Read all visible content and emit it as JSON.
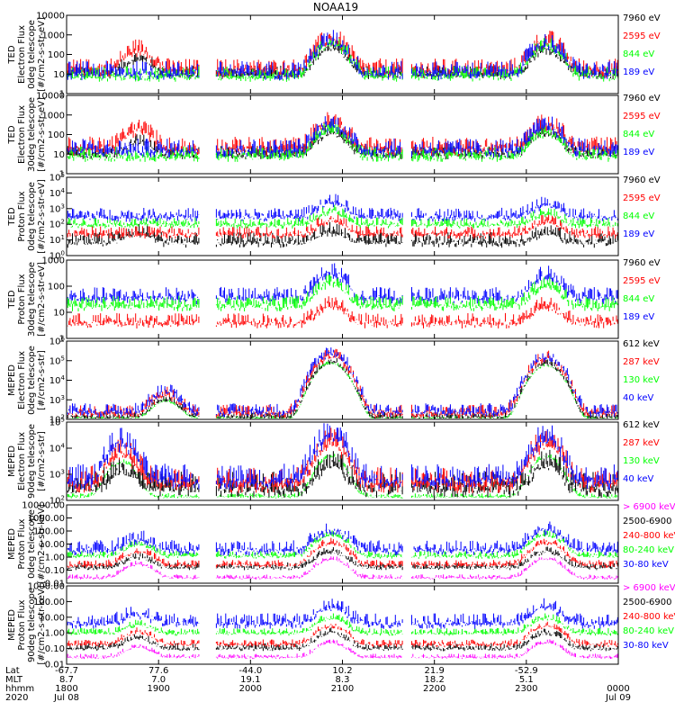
{
  "title": "NOAA19",
  "colors": {
    "black": "#000000",
    "red": "#ff0000",
    "green": "#00ff00",
    "blue": "#0000ff",
    "magenta": "#ff00ff"
  },
  "chart_data": [
    {
      "type": "line",
      "scale": "log",
      "ylabel": [
        "TED",
        "Electron Flux",
        "0deg telescope",
        "[#/cm2-s-str-eV]"
      ],
      "yticks": [
        "10000",
        "1000",
        "100",
        "10",
        "1"
      ],
      "ylim": [
        1,
        10000
      ],
      "legend": [
        {
          "name": "7960 eV",
          "color": "#000000"
        },
        {
          "name": "2595 eV",
          "color": "#ff0000"
        },
        {
          "name": "844 eV",
          "color": "#00ff00"
        },
        {
          "name": "189 eV",
          "color": "#0000ff"
        }
      ],
      "series": [
        {
          "color": "#000000",
          "base": 12,
          "spread": 0.35,
          "peaks": [
            [
              0.13,
              60
            ],
            [
              0.48,
              250
            ],
            [
              0.87,
              200
            ]
          ]
        },
        {
          "color": "#ff0000",
          "base": 20,
          "spread": 0.5,
          "peaks": [
            [
              0.13,
              200
            ],
            [
              0.48,
              700
            ],
            [
              0.87,
              600
            ]
          ]
        },
        {
          "color": "#00ff00",
          "base": 10,
          "spread": 0.4,
          "peaks": [
            [
              0.48,
              400
            ],
            [
              0.87,
              300
            ]
          ]
        },
        {
          "color": "#0000ff",
          "base": 15,
          "spread": 0.5,
          "peaks": [
            [
              0.48,
              600
            ],
            [
              0.87,
              450
            ]
          ]
        }
      ]
    },
    {
      "type": "line",
      "scale": "log",
      "ylabel": [
        "TED",
        "Electron Flux",
        "30deg telescope",
        "[#/cm2-s-str-eV]"
      ],
      "yticks": [
        "10000",
        "1000",
        "100",
        "10",
        "1"
      ],
      "ylim": [
        1,
        10000
      ],
      "legend": [
        {
          "name": "7960 eV",
          "color": "#000000"
        },
        {
          "name": "2595 eV",
          "color": "#ff0000"
        },
        {
          "name": "844 eV",
          "color": "#00ff00"
        },
        {
          "name": "189 eV",
          "color": "#0000ff"
        }
      ],
      "series": [
        {
          "color": "#000000",
          "base": 12,
          "spread": 0.35,
          "peaks": [
            [
              0.13,
              40
            ],
            [
              0.48,
              150
            ],
            [
              0.87,
              150
            ]
          ]
        },
        {
          "color": "#ff0000",
          "base": 25,
          "spread": 0.5,
          "peaks": [
            [
              0.13,
              200
            ],
            [
              0.48,
              500
            ],
            [
              0.87,
              400
            ]
          ]
        },
        {
          "color": "#00ff00",
          "base": 10,
          "spread": 0.4,
          "peaks": [
            [
              0.48,
              200
            ],
            [
              0.87,
              150
            ]
          ]
        },
        {
          "color": "#0000ff",
          "base": 20,
          "spread": 0.5,
          "peaks": [
            [
              0.48,
              400
            ],
            [
              0.87,
              300
            ]
          ]
        }
      ]
    },
    {
      "type": "line",
      "scale": "log",
      "ylabel": [
        "TED",
        "Proton Flux",
        "0deg telescope",
        "[#/cm2-s-str-eV]"
      ],
      "yticks": [
        "10^5",
        "10^4",
        "10^3",
        "10^2",
        "10^1",
        "10^0"
      ],
      "ylim": [
        1,
        100000
      ],
      "legend": [
        {
          "name": "7960 eV",
          "color": "#000000"
        },
        {
          "name": "2595 eV",
          "color": "#ff0000"
        },
        {
          "name": "844 eV",
          "color": "#00ff00"
        },
        {
          "name": "189 eV",
          "color": "#0000ff"
        }
      ],
      "series": [
        {
          "color": "#000000",
          "base": 10,
          "spread": 0.5,
          "peaks": [
            [
              0.13,
              30
            ],
            [
              0.48,
              40
            ],
            [
              0.87,
              30
            ]
          ]
        },
        {
          "color": "#ff0000",
          "base": 30,
          "spread": 0.4,
          "peaks": [
            [
              0.48,
              200
            ],
            [
              0.87,
              150
            ]
          ]
        },
        {
          "color": "#0000ff",
          "base": 400,
          "spread": 0.45,
          "peaks": [
            [
              0.48,
              3000
            ],
            [
              0.87,
              2000
            ]
          ]
        },
        {
          "color": "#00ff00",
          "base": 120,
          "spread": 0.35,
          "peaks": [
            [
              0.48,
              700
            ],
            [
              0.87,
              500
            ]
          ]
        }
      ]
    },
    {
      "type": "line",
      "scale": "log",
      "ylabel": [
        "TED",
        "Proton Flux",
        "30deg telescope",
        "[#/cm2-s-str-eV]"
      ],
      "yticks": [
        "1000",
        "100",
        "10",
        "1"
      ],
      "ylim": [
        1,
        10000
      ],
      "legend": [
        {
          "name": "7960 eV",
          "color": "#000000"
        },
        {
          "name": "2595 eV",
          "color": "#ff0000"
        },
        {
          "name": "844 eV",
          "color": "#00ff00"
        },
        {
          "name": "189 eV",
          "color": "#0000ff"
        }
      ],
      "series": [
        {
          "color": "#ff0000",
          "base": 8,
          "spread": 0.4,
          "peaks": [
            [
              0.48,
              60
            ],
            [
              0.87,
              50
            ]
          ]
        },
        {
          "color": "#0000ff",
          "base": 150,
          "spread": 0.45,
          "peaks": [
            [
              0.48,
              2500
            ],
            [
              0.87,
              1800
            ]
          ]
        },
        {
          "color": "#00ff00",
          "base": 60,
          "spread": 0.4,
          "peaks": [
            [
              0.48,
              800
            ],
            [
              0.87,
              600
            ]
          ]
        }
      ]
    },
    {
      "type": "line",
      "scale": "log",
      "ylabel": [
        "MEPED",
        "Electron Flux",
        "0deg telescope",
        "[#/cm2-s-str]"
      ],
      "yticks": [
        "10^6",
        "10^5",
        "10^4",
        "10^3",
        "10^2"
      ],
      "ylim": [
        100,
        1000000
      ],
      "legend": [
        {
          "name": "612 keV",
          "color": "#000000"
        },
        {
          "name": "287 keV",
          "color": "#ff0000"
        },
        {
          "name": "130 keV",
          "color": "#00ff00"
        },
        {
          "name": "40 keV",
          "color": "#0000ff"
        }
      ],
      "series": [
        {
          "color": "#00ff00",
          "base": 120,
          "spread": 0.1,
          "peaks": [
            [
              0.48,
              80000
            ],
            [
              0.87,
              60000
            ],
            [
              0.18,
              800
            ]
          ]
        },
        {
          "color": "#000000",
          "base": 150,
          "spread": 0.2,
          "peaks": [
            [
              0.48,
              100000
            ],
            [
              0.87,
              80000
            ],
            [
              0.18,
              1000
            ]
          ]
        },
        {
          "color": "#ff0000",
          "base": 250,
          "spread": 0.35,
          "peaks": [
            [
              0.48,
              200000
            ],
            [
              0.87,
              150000
            ],
            [
              0.18,
              2000
            ]
          ]
        },
        {
          "color": "#0000ff",
          "base": 300,
          "spread": 0.35,
          "peaks": [
            [
              0.48,
              300000
            ],
            [
              0.87,
              200000
            ],
            [
              0.18,
              3000
            ]
          ]
        }
      ]
    },
    {
      "type": "line",
      "scale": "log",
      "ylabel": [
        "MEPED",
        "Electron Flux",
        "90deg telescope",
        "[#/cm2-s-str]"
      ],
      "yticks": [
        "10^5",
        "10^4",
        "10^3",
        "10^2"
      ],
      "ylim": [
        100,
        100000
      ],
      "legend": [
        {
          "name": "612 keV",
          "color": "#000000"
        },
        {
          "name": "287 keV",
          "color": "#ff0000"
        },
        {
          "name": "130 keV",
          "color": "#00ff00"
        },
        {
          "name": "40 keV",
          "color": "#0000ff"
        }
      ],
      "series": [
        {
          "color": "#00ff00",
          "base": 150,
          "spread": 0.1,
          "peaks": [
            [
              0.1,
              3000
            ],
            [
              0.48,
              5000
            ],
            [
              0.87,
              5000
            ]
          ]
        },
        {
          "color": "#000000",
          "base": 400,
          "spread": 0.5,
          "peaks": [
            [
              0.1,
              1500
            ],
            [
              0.48,
              3000
            ],
            [
              0.87,
              3000
            ]
          ]
        },
        {
          "color": "#ff0000",
          "base": 600,
          "spread": 0.5,
          "peaks": [
            [
              0.1,
              8000
            ],
            [
              0.48,
              20000
            ],
            [
              0.87,
              20000
            ]
          ]
        },
        {
          "color": "#0000ff",
          "base": 800,
          "spread": 0.5,
          "peaks": [
            [
              0.1,
              20000
            ],
            [
              0.48,
              40000
            ],
            [
              0.87,
              30000
            ]
          ]
        }
      ]
    },
    {
      "type": "line",
      "scale": "log",
      "ylabel": [
        "MEPED",
        "Proton Flux",
        "0deg telescope",
        "[#/cm2-s-str-keV]"
      ],
      "yticks": [
        "10000.00",
        "1000.00",
        "100.00",
        "10.00",
        "1.00",
        "0.10",
        "0.01"
      ],
      "ylim": [
        0.01,
        10000
      ],
      "legend": [
        {
          "name": "> 6900 keV",
          "color": "#ff00ff"
        },
        {
          "name": "2500-6900",
          "color": "#000000"
        },
        {
          "name": "240-800 keV",
          "color": "#ff0000"
        },
        {
          "name": "80-240 keV",
          "color": "#00ff00"
        },
        {
          "name": "30-80 keV",
          "color": "#0000ff"
        }
      ],
      "series": [
        {
          "color": "#ff00ff",
          "base": 0.03,
          "spread": 0.2,
          "peaks": [
            [
              0.13,
              0.3
            ],
            [
              0.48,
              0.8
            ],
            [
              0.87,
              0.8
            ]
          ]
        },
        {
          "color": "#000000",
          "base": 0.2,
          "spread": 0.3,
          "peaks": [
            [
              0.13,
              1
            ],
            [
              0.48,
              3
            ],
            [
              0.87,
              3
            ]
          ]
        },
        {
          "color": "#ff0000",
          "base": 0.3,
          "spread": 0.3,
          "peaks": [
            [
              0.13,
              3
            ],
            [
              0.48,
              15
            ],
            [
              0.87,
              15
            ]
          ]
        },
        {
          "color": "#00ff00",
          "base": 1.5,
          "spread": 0.3,
          "peaks": [
            [
              0.13,
              10
            ],
            [
              0.48,
              60
            ],
            [
              0.87,
              60
            ]
          ]
        },
        {
          "color": "#0000ff",
          "base": 5,
          "spread": 0.6,
          "peaks": [
            [
              0.13,
              30
            ],
            [
              0.48,
              150
            ],
            [
              0.87,
              150
            ]
          ]
        }
      ]
    },
    {
      "type": "line",
      "scale": "log",
      "ylabel": [
        "MEPED",
        "Proton Flux",
        "90deg telescope",
        "[#/cm2-s-str-keV]"
      ],
      "yticks": [
        "1000.00",
        "100.00",
        "10.00",
        "1.00",
        "0.10",
        "0.01"
      ],
      "ylim": [
        0.01,
        10000
      ],
      "legend": [
        {
          "name": "> 6900 keV",
          "color": "#ff00ff"
        },
        {
          "name": "2500-6900",
          "color": "#000000"
        },
        {
          "name": "240-800 keV",
          "color": "#ff0000"
        },
        {
          "name": "80-240 keV",
          "color": "#00ff00"
        },
        {
          "name": "30-80 keV",
          "color": "#0000ff"
        }
      ],
      "series": [
        {
          "color": "#ff00ff",
          "base": 0.04,
          "spread": 0.2,
          "peaks": [
            [
              0.13,
              0.2
            ],
            [
              0.48,
              0.5
            ],
            [
              0.87,
              0.5
            ]
          ]
        },
        {
          "color": "#000000",
          "base": 0.2,
          "spread": 0.3,
          "peaks": [
            [
              0.13,
              1
            ],
            [
              0.48,
              3
            ],
            [
              0.87,
              3
            ]
          ]
        },
        {
          "color": "#ff0000",
          "base": 0.4,
          "spread": 0.3,
          "peaks": [
            [
              0.13,
              3
            ],
            [
              0.48,
              10
            ],
            [
              0.87,
              10
            ]
          ]
        },
        {
          "color": "#00ff00",
          "base": 3,
          "spread": 0.3,
          "peaks": [
            [
              0.13,
              10
            ],
            [
              0.48,
              40
            ],
            [
              0.87,
              40
            ]
          ]
        },
        {
          "color": "#0000ff",
          "base": 20,
          "spread": 0.6,
          "peaks": [
            [
              0.13,
              80
            ],
            [
              0.48,
              300
            ],
            [
              0.87,
              300
            ]
          ]
        }
      ]
    }
  ],
  "footer": {
    "labels": [
      "Lat",
      "MLT",
      "hhmm",
      "2020"
    ],
    "columns": [
      {
        "pos": 0.0,
        "lat": "-67.7",
        "mlt": "8.7",
        "hhmm": "1800",
        "date": "Jul 08"
      },
      {
        "pos": 0.1667,
        "lat": "77.6",
        "mlt": "7.0",
        "hhmm": "1900",
        "date": ""
      },
      {
        "pos": 0.3333,
        "lat": "-44.0",
        "mlt": "19.1",
        "hhmm": "2000",
        "date": ""
      },
      {
        "pos": 0.5,
        "lat": "10.2",
        "mlt": "8.3",
        "hhmm": "2100",
        "date": ""
      },
      {
        "pos": 0.6667,
        "lat": "21.9",
        "mlt": "18.2",
        "hhmm": "2200",
        "date": ""
      },
      {
        "pos": 0.8333,
        "lat": "-52.9",
        "mlt": "5.1",
        "hhmm": "2300",
        "date": ""
      },
      {
        "pos": 1.0,
        "lat": "",
        "mlt": "",
        "hhmm": "0000",
        "date": "Jul 09"
      }
    ]
  }
}
